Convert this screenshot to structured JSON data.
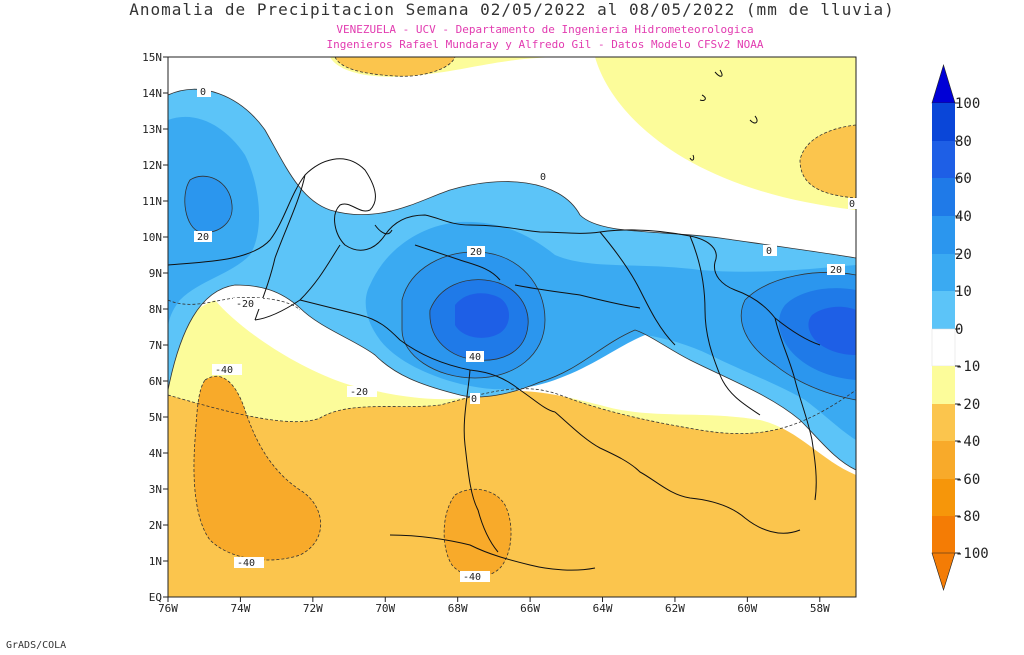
{
  "title": "Anomalia de Precipitacion Semana 02/05/2022 al 08/05/2022 (mm de lluvia)",
  "subtitle_line1": "VENEZUELA - UCV - Departamento de Ingenieria Hidrometeorologica",
  "subtitle_line2": "Ingenieros Rafael Mundaray y Alfredo Gil - Datos Modelo CFSv2 NOAA",
  "credit": "GrADS/COLA",
  "map": {
    "lon_labels": [
      "76W",
      "74W",
      "72W",
      "70W",
      "68W",
      "66W",
      "64W",
      "62W",
      "60W",
      "58W"
    ],
    "lat_labels": [
      "EQ",
      "1N",
      "2N",
      "3N",
      "4N",
      "5N",
      "6N",
      "7N",
      "8N",
      "9N",
      "10N",
      "11N",
      "12N",
      "13N",
      "14N",
      "15N"
    ],
    "lon_range": [
      -76,
      -57
    ],
    "lat_range": [
      0,
      15
    ]
  },
  "contour_labels": [
    "0",
    "20",
    "20",
    "0",
    "0",
    "20",
    "0",
    "-20",
    "-40",
    "-20",
    "40",
    "0",
    "-40",
    "-40"
  ],
  "colorbar": {
    "labels": [
      "100",
      "80",
      "60",
      "40",
      "20",
      "10",
      "0",
      "-10",
      "-20",
      "-40",
      "-60",
      "-80",
      "-100"
    ],
    "colors": {
      "gt80": "#0a46d8",
      "c60_80": "#1e5fe6",
      "c40_60": "#1f7ae8",
      "c20_40": "#2b96ee",
      "c10_20": "#3aaaf2",
      "c0_10": "#5cc4f8",
      "m10_0": "#ffffff",
      "m20_m10": "#fcfc9a",
      "m40_m20": "#fbc54d",
      "m60_m40": "#f8aa2a",
      "m80_m60": "#f6960a",
      "lt_m80": "#f47c05",
      "max_arrow": "#0000d6",
      "min_arrow": "#f47c05"
    }
  }
}
